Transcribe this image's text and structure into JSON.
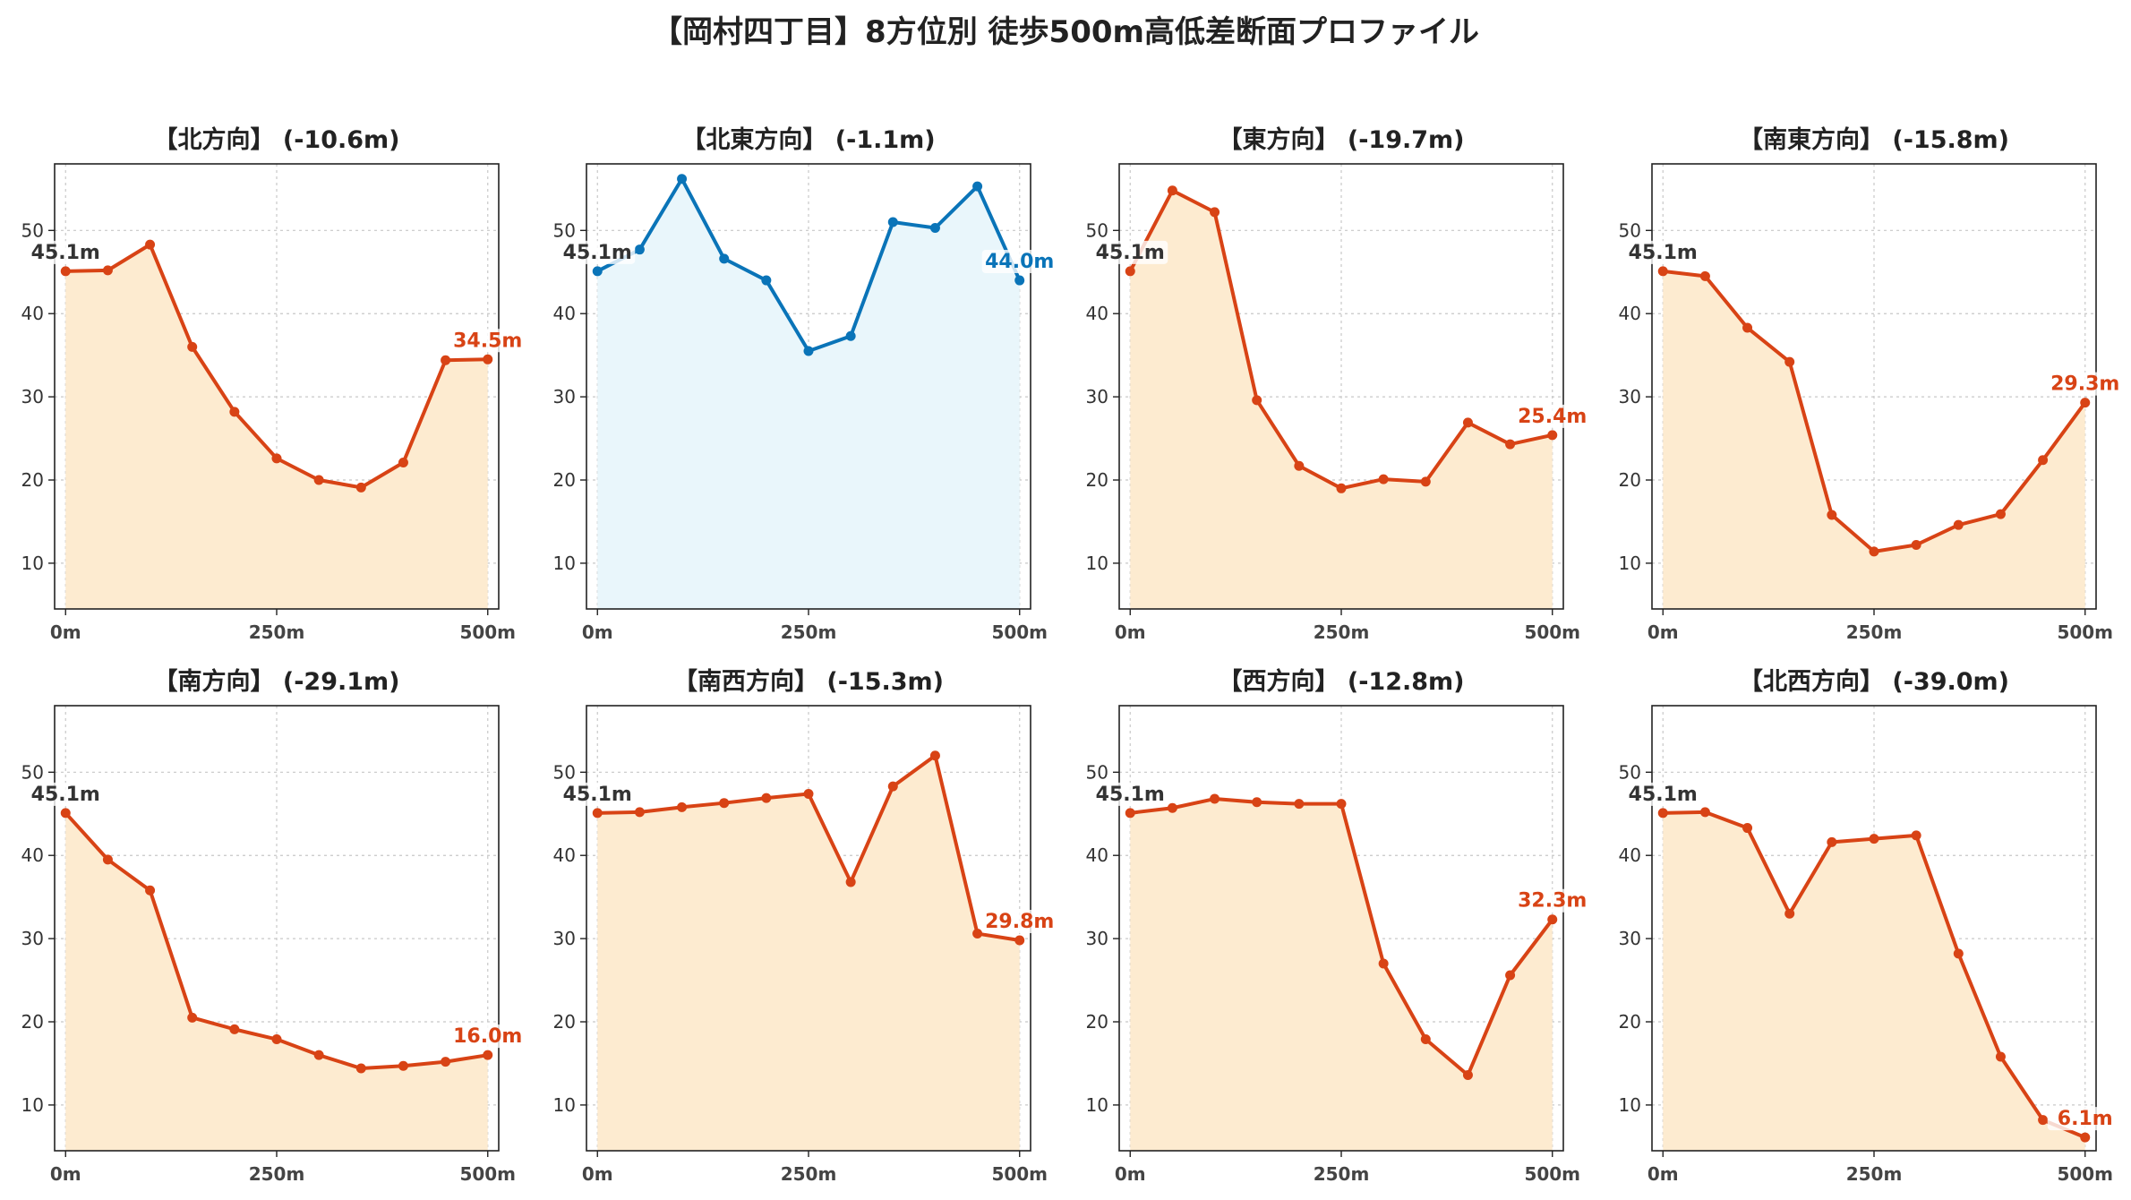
{
  "title": "【岡村四丁目】8方位別 徒歩500m高低差断面プロファイル",
  "colors": {
    "descent_line": "#D84315",
    "descent_fill": "#FDEBD0",
    "flat_line": "#0A74B8",
    "flat_fill": "#E9F6FB",
    "start_label": "#333333",
    "grid": "#c8c8c8"
  },
  "chart_data": [
    {
      "type": "area",
      "direction": "北方向",
      "title": "【北方向】 (-10.6m)",
      "style": "descent",
      "x": [
        0,
        50,
        100,
        150,
        200,
        250,
        300,
        350,
        400,
        450,
        500
      ],
      "y": [
        45.1,
        45.2,
        48.3,
        36.0,
        28.2,
        22.6,
        20.0,
        19.1,
        22.1,
        34.4,
        34.5
      ],
      "start_label": "45.1m",
      "end_label": "34.5m",
      "ylim": [
        4.5,
        58
      ],
      "yticks": [
        10,
        20,
        30,
        40,
        50
      ],
      "xticks": [
        0,
        250,
        500
      ],
      "xtick_labels": [
        "0m",
        "250m",
        "500m"
      ],
      "grid": true
    },
    {
      "type": "area",
      "direction": "北東方向",
      "title": "【北東方向】 (-1.1m)",
      "style": "flat",
      "x": [
        0,
        50,
        100,
        150,
        200,
        250,
        300,
        350,
        400,
        450,
        500
      ],
      "y": [
        45.1,
        47.7,
        56.2,
        46.6,
        44.0,
        35.5,
        37.3,
        51.0,
        50.3,
        55.3,
        44.0
      ],
      "start_label": "45.1m",
      "end_label": "44.0m",
      "ylim": [
        4.5,
        58
      ],
      "yticks": [
        10,
        20,
        30,
        40,
        50
      ],
      "xticks": [
        0,
        250,
        500
      ],
      "xtick_labels": [
        "0m",
        "250m",
        "500m"
      ],
      "grid": true
    },
    {
      "type": "area",
      "direction": "東方向",
      "title": "【東方向】 (-19.7m)",
      "style": "descent",
      "x": [
        0,
        50,
        100,
        150,
        200,
        250,
        300,
        350,
        400,
        450,
        500
      ],
      "y": [
        45.1,
        54.8,
        52.2,
        29.6,
        21.7,
        19.0,
        20.1,
        19.8,
        26.9,
        24.3,
        25.4
      ],
      "start_label": "45.1m",
      "end_label": "25.4m",
      "ylim": [
        4.5,
        58
      ],
      "yticks": [
        10,
        20,
        30,
        40,
        50
      ],
      "xticks": [
        0,
        250,
        500
      ],
      "xtick_labels": [
        "0m",
        "250m",
        "500m"
      ],
      "grid": true
    },
    {
      "type": "area",
      "direction": "南東方向",
      "title": "【南東方向】 (-15.8m)",
      "style": "descent",
      "x": [
        0,
        50,
        100,
        150,
        200,
        250,
        300,
        350,
        400,
        450,
        500
      ],
      "y": [
        45.1,
        44.5,
        38.3,
        34.2,
        15.8,
        11.4,
        12.2,
        14.6,
        15.9,
        22.4,
        29.3
      ],
      "start_label": "45.1m",
      "end_label": "29.3m",
      "ylim": [
        4.5,
        58
      ],
      "yticks": [
        10,
        20,
        30,
        40,
        50
      ],
      "xticks": [
        0,
        250,
        500
      ],
      "xtick_labels": [
        "0m",
        "250m",
        "500m"
      ],
      "grid": true
    },
    {
      "type": "area",
      "direction": "南方向",
      "title": "【南方向】 (-29.1m)",
      "style": "descent",
      "x": [
        0,
        50,
        100,
        150,
        200,
        250,
        300,
        350,
        400,
        450,
        500
      ],
      "y": [
        45.1,
        39.5,
        35.8,
        20.5,
        19.1,
        17.9,
        16.0,
        14.4,
        14.7,
        15.2,
        16.0
      ],
      "start_label": "45.1m",
      "end_label": "16.0m",
      "ylim": [
        4.5,
        58
      ],
      "yticks": [
        10,
        20,
        30,
        40,
        50
      ],
      "xticks": [
        0,
        250,
        500
      ],
      "xtick_labels": [
        "0m",
        "250m",
        "500m"
      ],
      "grid": true
    },
    {
      "type": "area",
      "direction": "南西方向",
      "title": "【南西方向】 (-15.3m)",
      "style": "descent",
      "x": [
        0,
        50,
        100,
        150,
        200,
        250,
        300,
        350,
        400,
        450,
        500
      ],
      "y": [
        45.1,
        45.2,
        45.8,
        46.3,
        46.9,
        47.4,
        36.8,
        48.3,
        52.0,
        30.6,
        29.8
      ],
      "start_label": "45.1m",
      "end_label": "29.8m",
      "ylim": [
        4.5,
        58
      ],
      "yticks": [
        10,
        20,
        30,
        40,
        50
      ],
      "xticks": [
        0,
        250,
        500
      ],
      "xtick_labels": [
        "0m",
        "250m",
        "500m"
      ],
      "grid": true
    },
    {
      "type": "area",
      "direction": "西方向",
      "title": "【西方向】 (-12.8m)",
      "style": "descent",
      "x": [
        0,
        50,
        100,
        150,
        200,
        250,
        300,
        350,
        400,
        450,
        500
      ],
      "y": [
        45.1,
        45.7,
        46.8,
        46.4,
        46.2,
        46.2,
        27.0,
        17.9,
        13.6,
        25.6,
        32.3
      ],
      "start_label": "45.1m",
      "end_label": "32.3m",
      "ylim": [
        4.5,
        58
      ],
      "yticks": [
        10,
        20,
        30,
        40,
        50
      ],
      "xticks": [
        0,
        250,
        500
      ],
      "xtick_labels": [
        "0m",
        "250m",
        "500m"
      ],
      "grid": true
    },
    {
      "type": "area",
      "direction": "北西方向",
      "title": "【北西方向】 (-39.0m)",
      "style": "descent",
      "x": [
        0,
        50,
        100,
        150,
        200,
        250,
        300,
        350,
        400,
        450,
        500
      ],
      "y": [
        45.1,
        45.2,
        43.3,
        33.0,
        41.6,
        42.0,
        42.4,
        28.2,
        15.8,
        8.2,
        6.1
      ],
      "start_label": "45.1m",
      "end_label": "6.1m",
      "ylim": [
        4.5,
        58
      ],
      "yticks": [
        10,
        20,
        30,
        40,
        50
      ],
      "xticks": [
        0,
        250,
        500
      ],
      "xtick_labels": [
        "0m",
        "250m",
        "500m"
      ],
      "grid": true
    }
  ]
}
